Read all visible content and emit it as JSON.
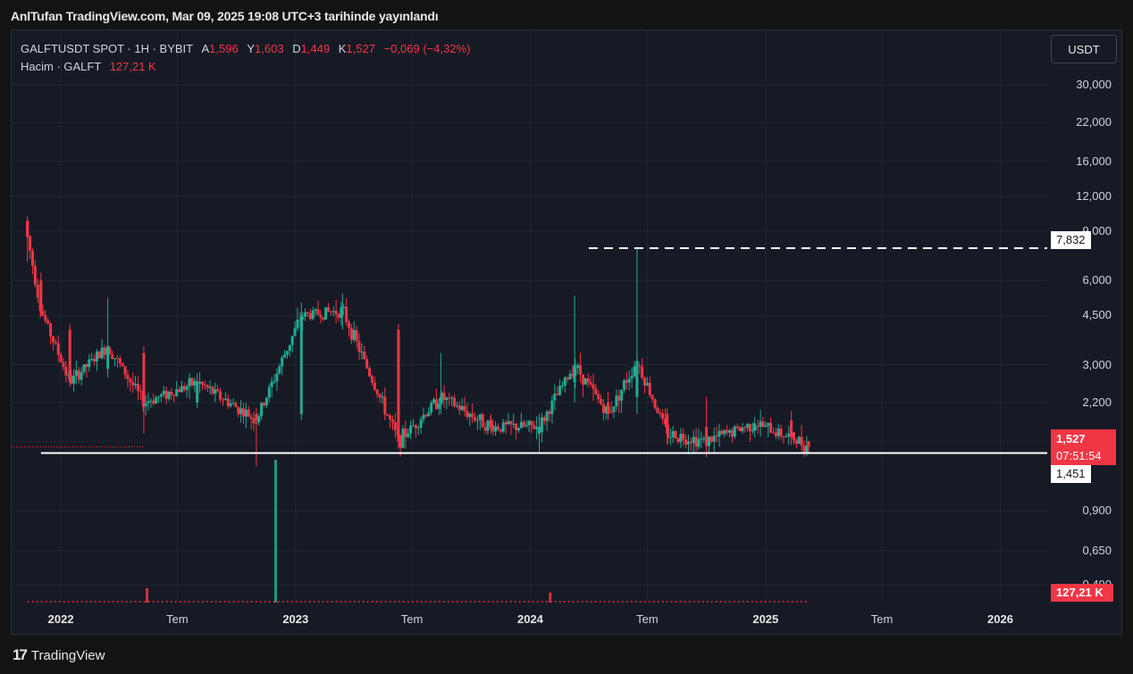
{
  "header": {
    "published_text": "AnlTufan TradingView.com, Mar 09, 2025 19:08 UTC+3 tarihinde yayınlandı"
  },
  "legend": {
    "symbol": "GALFTUSDT SPOT · 1H · BYBIT",
    "open_label": "A",
    "open_value": "1,596",
    "high_label": "Y",
    "high_value": "1,603",
    "low_label": "D",
    "low_value": "1,449",
    "close_label": "K",
    "close_value": "1,527",
    "change": "−0,069 (−4,32%)",
    "volume_label": "Hacim · GALFT",
    "volume_value": "127,21 K"
  },
  "currency_button": "USDT",
  "price_tags": {
    "level_top": "7,832",
    "current_price": "1,527",
    "countdown": "07:51:54",
    "level_bottom": "1,451",
    "volume": "127,21 K"
  },
  "footer": {
    "brand": "TradingView",
    "logo_glyph": "17"
  },
  "colors": {
    "up": "#22ab94",
    "down": "#f23645",
    "background": "#161a25",
    "grid": "#232733",
    "line": "#ffffff"
  },
  "chart_data": {
    "type": "candlestick",
    "scale": "log",
    "y_ticks": [
      "30,000",
      "22,000",
      "16,000",
      "12,000",
      "9,000",
      "6,000",
      "4,500",
      "3,000",
      "2,200",
      "1,600",
      "0,900",
      "0,650",
      "0,490"
    ],
    "y_tick_values": [
      30,
      22,
      16,
      12,
      9,
      6,
      4.5,
      3,
      2.2,
      1.6,
      0.9,
      0.65,
      0.49
    ],
    "ylim": [
      0.43,
      38
    ],
    "x_ticks": [
      "2022",
      "Tem",
      "2023",
      "Tem",
      "2024",
      "Tem",
      "2025",
      "Tem",
      "2026"
    ],
    "x_tick_bold": [
      true,
      false,
      true,
      false,
      true,
      false,
      true,
      false,
      true
    ],
    "xlim": [
      "2021-10-15",
      "2026-03-15"
    ],
    "horizontal_levels": [
      {
        "value": 7.832,
        "style": "dashed",
        "from": "2024-04-01"
      },
      {
        "value": 1.451,
        "style": "solid",
        "from": "2021-12-01"
      }
    ],
    "last_price": 1.527,
    "ohlc_samples": [
      {
        "date": "2021-11-10",
        "open": 9.8,
        "high": 10.2,
        "low": 7.0,
        "close": 8.6
      },
      {
        "date": "2021-12-01",
        "open": 6.0,
        "high": 6.4,
        "low": 4.5,
        "close": 4.7
      },
      {
        "date": "2022-01-15",
        "open": 4.0,
        "high": 4.2,
        "low": 2.5,
        "close": 2.6
      },
      {
        "date": "2022-03-15",
        "open": 2.9,
        "high": 5.2,
        "low": 2.7,
        "close": 3.5
      },
      {
        "date": "2022-05-10",
        "open": 3.3,
        "high": 3.5,
        "low": 1.7,
        "close": 2.2
      },
      {
        "date": "2022-08-01",
        "open": 2.2,
        "high": 2.8,
        "low": 2.1,
        "close": 2.6
      },
      {
        "date": "2022-11-01",
        "open": 2.0,
        "high": 2.1,
        "low": 1.3,
        "close": 1.9
      },
      {
        "date": "2023-01-10",
        "open": 2.0,
        "high": 5.0,
        "low": 1.9,
        "close": 4.5
      },
      {
        "date": "2023-03-15",
        "open": 4.5,
        "high": 5.4,
        "low": 4.0,
        "close": 4.7
      },
      {
        "date": "2023-06-10",
        "open": 4.0,
        "high": 4.2,
        "low": 1.5,
        "close": 1.6
      },
      {
        "date": "2023-08-15",
        "open": 2.2,
        "high": 3.3,
        "low": 2.0,
        "close": 2.3
      },
      {
        "date": "2023-11-01",
        "open": 1.9,
        "high": 2.0,
        "low": 1.7,
        "close": 1.8
      },
      {
        "date": "2024-01-15",
        "open": 1.7,
        "high": 2.0,
        "low": 1.45,
        "close": 1.8
      },
      {
        "date": "2024-03-10",
        "open": 2.6,
        "high": 5.3,
        "low": 2.2,
        "close": 3.0
      },
      {
        "date": "2024-05-01",
        "open": 2.2,
        "high": 2.4,
        "low": 1.9,
        "close": 2.0
      },
      {
        "date": "2024-06-15",
        "open": 2.3,
        "high": 7.832,
        "low": 2.0,
        "close": 3.1
      },
      {
        "date": "2024-08-01",
        "open": 2.0,
        "high": 2.1,
        "low": 1.55,
        "close": 1.7
      },
      {
        "date": "2024-10-01",
        "open": 1.8,
        "high": 2.3,
        "low": 1.4,
        "close": 1.6
      },
      {
        "date": "2024-12-15",
        "open": 1.75,
        "high": 1.95,
        "low": 1.65,
        "close": 1.85
      },
      {
        "date": "2025-02-10",
        "open": 1.9,
        "high": 2.05,
        "low": 1.55,
        "close": 1.65
      },
      {
        "date": "2025-03-09",
        "open": 1.596,
        "high": 1.603,
        "low": 1.449,
        "close": 1.527
      }
    ],
    "volume_spikes": [
      {
        "date": "2022-05-15",
        "value": 0.1
      },
      {
        "date": "2022-12-01",
        "value": 1.0
      },
      {
        "date": "2024-02-01",
        "value": 0.07
      }
    ]
  }
}
